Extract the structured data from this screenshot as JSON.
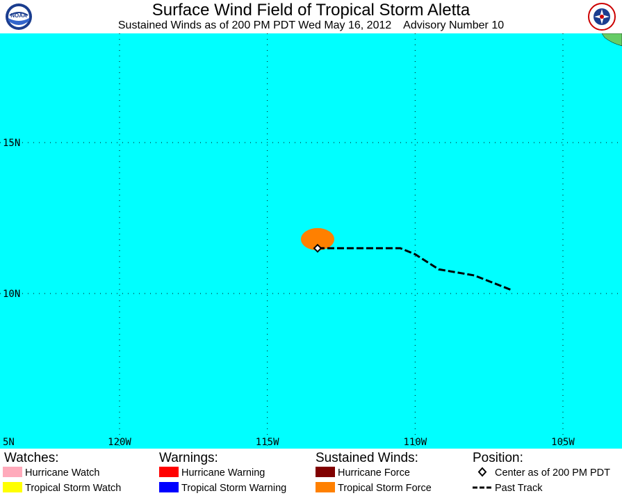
{
  "header": {
    "title": "Surface Wind Field of Tropical Storm Aletta",
    "subtitle": "Sustained Winds as of 200 PM PDT Wed May 16, 2012    Advisory Number 10",
    "logo_left_text": "NOAA",
    "logo_right_text": "NATIONAL WEATHER SERVICE"
  },
  "map": {
    "ocean_color": "#00ffff",
    "land_color": "#66cc66",
    "lat_labels": [
      "15N",
      "10N",
      "5N"
    ],
    "lon_labels": [
      "120W",
      "115W",
      "110W",
      "105W"
    ],
    "storm": {
      "center": {
        "lat": 11.5,
        "lon": -113.3
      },
      "tropical_storm_force_color": "#ff8000",
      "past_track": [
        {
          "lat": 11.5,
          "lon": -113.3
        },
        {
          "lat": 11.5,
          "lon": -110.5
        },
        {
          "lat": 11.3,
          "lon": -110.0
        },
        {
          "lat": 10.8,
          "lon": -109.2
        },
        {
          "lat": 10.6,
          "lon": -108.0
        },
        {
          "lat": 10.1,
          "lon": -106.7
        }
      ]
    }
  },
  "legend": {
    "watches": {
      "heading": "Watches:",
      "items": [
        {
          "label": "Hurricane Watch",
          "color": "#ffaabb"
        },
        {
          "label": "Tropical Storm Watch",
          "color": "#ffff00"
        }
      ]
    },
    "warnings": {
      "heading": "Warnings:",
      "items": [
        {
          "label": "Hurricane Warning",
          "color": "#ff0000"
        },
        {
          "label": "Tropical Storm Warning",
          "color": "#0000ff"
        }
      ]
    },
    "winds": {
      "heading": "Sustained Winds:",
      "items": [
        {
          "label": "Hurricane Force",
          "color": "#800000"
        },
        {
          "label": "Tropical Storm Force",
          "color": "#ff8000"
        }
      ]
    },
    "position": {
      "heading": "Position:",
      "items": [
        {
          "label": "Center as of 200 PM PDT",
          "icon": "diamond-icon"
        },
        {
          "label": "Past Track",
          "icon": "dashed-line-icon"
        }
      ]
    }
  }
}
